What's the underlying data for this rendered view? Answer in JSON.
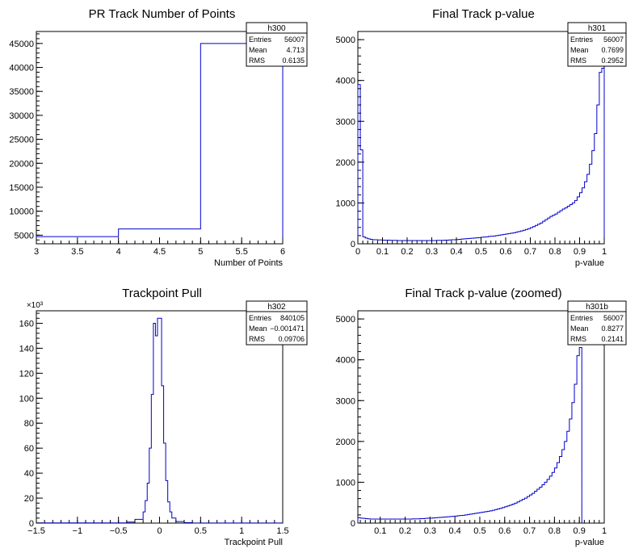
{
  "colors": {
    "histogram": "#0000cc",
    "frame": "#000000",
    "background": "#ffffff"
  },
  "chart_data": [
    {
      "type": "histogram",
      "title": "PR Track Number of Points",
      "xlabel": "Number of Points",
      "ylabel": "",
      "xlim": [
        3,
        6
      ],
      "ylim": [
        3200,
        47500
      ],
      "x_ticks": [
        "3",
        "3.5",
        "4",
        "4.5",
        "5",
        "5.5",
        "6"
      ],
      "x_tick_values": [
        3,
        3.5,
        4,
        4.5,
        5,
        5.5,
        6
      ],
      "y_ticks": [
        "5000",
        "10000",
        "15000",
        "20000",
        "25000",
        "30000",
        "35000",
        "40000",
        "45000"
      ],
      "y_tick_values": [
        5000,
        10000,
        15000,
        20000,
        25000,
        30000,
        35000,
        40000,
        45000
      ],
      "bins": [
        {
          "x": [
            3,
            4
          ],
          "y": 4700
        },
        {
          "x": [
            4,
            5
          ],
          "y": 6300
        },
        {
          "x": [
            5,
            6
          ],
          "y": 45000
        }
      ],
      "stats": {
        "name": "h300",
        "rows": [
          {
            "label": "Entries",
            "value": "56007"
          },
          {
            "label": "Mean",
            "value": "4.713"
          },
          {
            "label": "RMS",
            "value": "0.6135"
          }
        ]
      }
    },
    {
      "type": "histogram",
      "title": "Final Track p-value",
      "xlabel": "p-value",
      "ylabel": "",
      "xlim": [
        0,
        1
      ],
      "ylim": [
        0,
        5200
      ],
      "x_ticks": [
        "0",
        "0.1",
        "0.2",
        "0.3",
        "0.4",
        "0.5",
        "0.6",
        "0.7",
        "0.8",
        "0.9",
        "1"
      ],
      "x_tick_values": [
        0,
        0.1,
        0.2,
        0.3,
        0.4,
        0.5,
        0.6,
        0.7,
        0.8,
        0.9,
        1
      ],
      "y_ticks": [
        "0",
        "1000",
        "2000",
        "3000",
        "4000",
        "5000"
      ],
      "y_tick_values": [
        0,
        1000,
        2000,
        3000,
        4000,
        5000
      ],
      "bin_width": 0.01,
      "x_start": 0,
      "values": [
        3900,
        2300,
        170,
        140,
        120,
        110,
        100,
        100,
        95,
        95,
        90,
        90,
        90,
        85,
        85,
        85,
        80,
        80,
        80,
        80,
        80,
        80,
        80,
        80,
        80,
        80,
        80,
        80,
        80,
        80,
        80,
        80,
        85,
        85,
        85,
        90,
        90,
        95,
        100,
        100,
        105,
        110,
        115,
        120,
        125,
        130,
        135,
        140,
        145,
        150,
        160,
        165,
        170,
        180,
        185,
        190,
        200,
        210,
        220,
        230,
        240,
        250,
        260,
        270,
        285,
        300,
        315,
        330,
        350,
        370,
        395,
        420,
        450,
        480,
        510,
        550,
        590,
        630,
        670,
        700,
        730,
        770,
        810,
        850,
        880,
        920,
        960,
        1000,
        1060,
        1150,
        1250,
        1370,
        1520,
        1700,
        1950,
        2280,
        2700,
        3400,
        4200,
        4300
      ]
    },
    {
      "type": "histogram",
      "title": "Trackpoint Pull",
      "xlabel": "Trackpoint Pull",
      "ylabel": "",
      "y_multiplier": "×10³",
      "xlim": [
        -1.5,
        1.5
      ],
      "ylim": [
        0,
        170
      ],
      "x_ticks": [
        "−1.5",
        "−1",
        "−0.5",
        "0",
        "0.5",
        "1",
        "1.5"
      ],
      "x_tick_values": [
        -1.5,
        -1,
        -0.5,
        0,
        0.5,
        1,
        1.5
      ],
      "y_ticks": [
        "0",
        "20",
        "40",
        "60",
        "80",
        "100",
        "120",
        "140",
        "160"
      ],
      "y_tick_values": [
        0,
        20,
        40,
        60,
        80,
        100,
        120,
        140,
        160
      ],
      "bins": [
        {
          "x": [
            -1.5,
            -0.4
          ],
          "y": 0.2
        },
        {
          "x": [
            -0.4,
            -0.3
          ],
          "y": 0.8
        },
        {
          "x": [
            -0.3,
            -0.2
          ],
          "y": 3
        },
        {
          "x": [
            -0.2,
            -0.175
          ],
          "y": 9
        },
        {
          "x": [
            -0.175,
            -0.15
          ],
          "y": 18
        },
        {
          "x": [
            -0.15,
            -0.125
          ],
          "y": 32
        },
        {
          "x": [
            -0.125,
            -0.1
          ],
          "y": 60
        },
        {
          "x": [
            -0.1,
            -0.075
          ],
          "y": 103
        },
        {
          "x": [
            -0.075,
            -0.05
          ],
          "y": 160
        },
        {
          "x": [
            -0.05,
            -0.025
          ],
          "y": 150
        },
        {
          "x": [
            -0.025,
            0
          ],
          "y": 164
        },
        {
          "x": [
            0,
            0.025
          ],
          "y": 164
        },
        {
          "x": [
            0.025,
            0.05
          ],
          "y": 110
        },
        {
          "x": [
            0.05,
            0.075
          ],
          "y": 64
        },
        {
          "x": [
            0.075,
            0.1
          ],
          "y": 34
        },
        {
          "x": [
            0.1,
            0.125
          ],
          "y": 17
        },
        {
          "x": [
            0.125,
            0.15
          ],
          "y": 9
        },
        {
          "x": [
            0.15,
            0.2
          ],
          "y": 4
        },
        {
          "x": [
            0.2,
            0.3
          ],
          "y": 1.2
        },
        {
          "x": [
            0.3,
            0.4
          ],
          "y": 0.4
        },
        {
          "x": [
            0.4,
            1.5
          ],
          "y": 0.1
        }
      ],
      "stats": {
        "name": "h302",
        "rows": [
          {
            "label": "Entries",
            "value": "840105"
          },
          {
            "label": "Mean",
            "value": "−0.001471"
          },
          {
            "label": "RMS",
            "value": "0.09706"
          }
        ]
      }
    },
    {
      "type": "histogram",
      "title": "Final Track p-value (zoomed)",
      "xlabel": "p-value",
      "ylabel": "",
      "xlim": [
        0.01,
        1
      ],
      "ylim": [
        0,
        5200
      ],
      "x_ticks": [
        "0.1",
        "0.2",
        "0.3",
        "0.4",
        "0.5",
        "0.6",
        "0.7",
        "0.8",
        "0.9",
        "1"
      ],
      "x_tick_values": [
        0.1,
        0.2,
        0.3,
        0.4,
        0.5,
        0.6,
        0.7,
        0.8,
        0.9,
        1
      ],
      "y_ticks": [
        "0",
        "1000",
        "2000",
        "3000",
        "4000",
        "5000"
      ],
      "y_tick_values": [
        0,
        1000,
        2000,
        3000,
        4000,
        5000
      ],
      "bin_width": 0.01,
      "x_start": 0.01,
      "values": [
        130,
        120,
        115,
        110,
        105,
        100,
        100,
        100,
        100,
        100,
        100,
        100,
        100,
        100,
        100,
        100,
        100,
        100,
        100,
        100,
        100,
        100,
        105,
        105,
        105,
        110,
        110,
        115,
        120,
        120,
        125,
        130,
        135,
        140,
        145,
        150,
        155,
        160,
        165,
        170,
        180,
        185,
        190,
        200,
        210,
        220,
        230,
        240,
        250,
        260,
        270,
        280,
        290,
        300,
        315,
        330,
        345,
        360,
        380,
        400,
        420,
        440,
        465,
        490,
        520,
        550,
        580,
        610,
        650,
        690,
        730,
        780,
        830,
        880,
        940,
        1000,
        1070,
        1150,
        1240,
        1350,
        1480,
        1630,
        1800,
        2000,
        2250,
        2550,
        2950,
        3400,
        4100,
        4300
      ]
    }
  ],
  "stat_boxes": [
    {
      "name": "h300",
      "rows": [
        {
          "label": "Entries",
          "value": "56007"
        },
        {
          "label": "Mean",
          "value": "4.713"
        },
        {
          "label": "RMS",
          "value": "0.6135"
        }
      ]
    },
    {
      "name": "h301",
      "rows": [
        {
          "label": "Entries",
          "value": "56007"
        },
        {
          "label": "Mean",
          "value": "0.7699"
        },
        {
          "label": "RMS",
          "value": "0.2952"
        }
      ]
    },
    {
      "name": "h302",
      "rows": [
        {
          "label": "Entries",
          "value": "840105"
        },
        {
          "label": "Mean",
          "value": "−0.001471"
        },
        {
          "label": "RMS",
          "value": "0.09706"
        }
      ]
    },
    {
      "name": "h301b",
      "rows": [
        {
          "label": "Entries",
          "value": "56007"
        },
        {
          "label": "Mean",
          "value": "0.8277"
        },
        {
          "label": "RMS",
          "value": "0.2141"
        }
      ]
    }
  ]
}
